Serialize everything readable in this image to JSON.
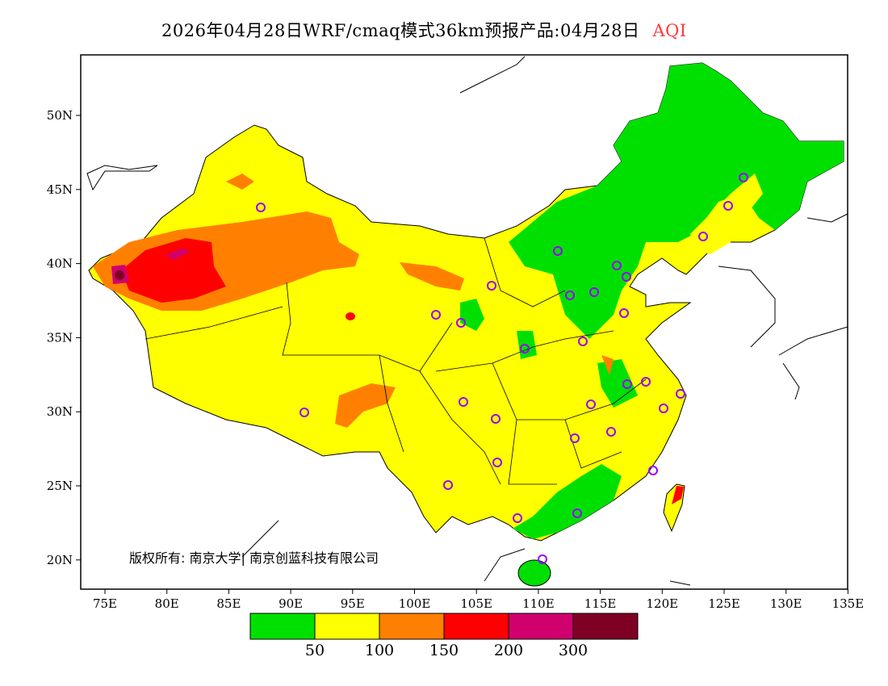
{
  "title": {
    "main": "2026年04月28日WRF/cmaq模式36km预报产品:04月28日",
    "variable": "AQI",
    "variable_color": "#ff3b3b"
  },
  "axes": {
    "lon_ticks": [
      "75E",
      "80E",
      "85E",
      "90E",
      "95E",
      "100E",
      "105E",
      "110E",
      "115E",
      "120E",
      "125E",
      "130E",
      "135E"
    ],
    "lat_ticks": [
      "50N",
      "45N",
      "40N",
      "35N",
      "30N",
      "25N",
      "20N"
    ]
  },
  "legend": {
    "colors": [
      "#00e000",
      "#ffff00",
      "#ff8000",
      "#ff0000",
      "#d0006e",
      "#7e0023"
    ],
    "breaks": [
      "50",
      "100",
      "150",
      "200",
      "300"
    ]
  },
  "attribution": "版权所有: 南京大学| 南京创蓝科技有限公司"
}
